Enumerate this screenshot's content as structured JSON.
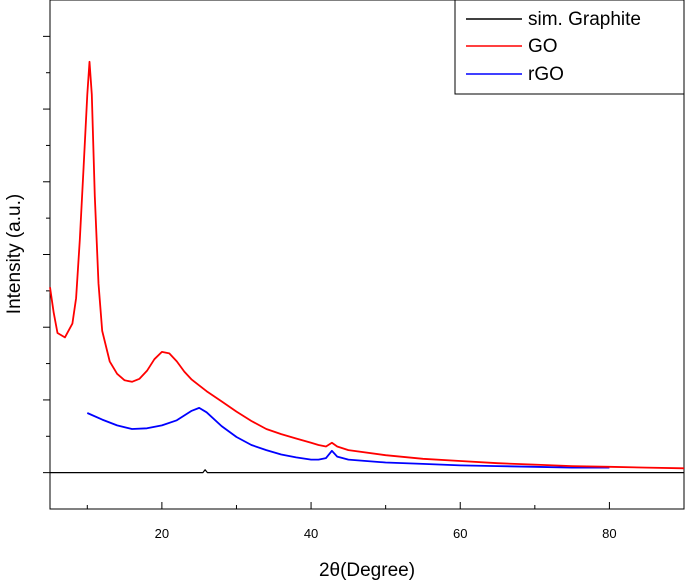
{
  "chart_data": {
    "type": "line",
    "title": "",
    "xlabel": "2θ(Degree)",
    "ylabel": "Intensity (a.u.)",
    "xlim": [
      5,
      90
    ],
    "ylim": [
      -5,
      65
    ],
    "x_ticks": [
      20,
      40,
      60,
      80
    ],
    "x_tick_labels": [
      "20",
      "40",
      "60",
      "80"
    ],
    "y_tick_labels_shown": false,
    "grid": false,
    "legend_position": "top-right",
    "series": [
      {
        "name": "sim. Graphite",
        "color": "#000000",
        "x": [
          5,
          25.5,
          25.8,
          26.1,
          90
        ],
        "y": [
          0,
          0,
          0.4,
          0,
          0
        ]
      },
      {
        "name": "GO",
        "color": "#ff0000",
        "x": [
          5,
          5.5,
          6,
          7,
          8,
          8.5,
          9,
          9.5,
          10,
          10.3,
          10.6,
          11,
          11.5,
          12,
          13,
          14,
          15,
          16,
          17,
          18,
          19,
          20,
          21,
          22,
          23,
          24,
          25,
          26,
          28,
          30,
          32,
          34,
          36,
          38,
          40,
          41,
          42,
          42.8,
          43.5,
          45,
          50,
          55,
          60,
          65,
          70,
          75,
          80,
          85,
          90
        ],
        "y": [
          25.5,
          22,
          19.2,
          18.6,
          20.5,
          24,
          32,
          42,
          52,
          56.5,
          52,
          38,
          26,
          19.5,
          15.3,
          13.6,
          12.7,
          12.5,
          12.9,
          14,
          15.6,
          16.6,
          16.4,
          15.3,
          13.9,
          12.8,
          12,
          11.2,
          9.8,
          8.4,
          7.1,
          6,
          5.3,
          4.7,
          4.1,
          3.8,
          3.6,
          4.1,
          3.6,
          3.1,
          2.4,
          1.9,
          1.6,
          1.3,
          1.1,
          0.9,
          0.8,
          0.7,
          0.6
        ]
      },
      {
        "name": "rGO",
        "color": "#0000ff",
        "x": [
          10,
          12,
          14,
          16,
          18,
          20,
          22,
          24,
          25,
          26,
          28,
          30,
          32,
          34,
          36,
          38,
          40,
          41,
          42,
          42.8,
          43.5,
          45,
          50,
          55,
          60,
          65,
          70,
          75,
          80
        ],
        "y": [
          8.2,
          7.3,
          6.5,
          6,
          6.1,
          6.5,
          7.2,
          8.5,
          8.9,
          8.3,
          6.4,
          4.9,
          3.8,
          3.1,
          2.5,
          2.1,
          1.8,
          1.8,
          2,
          3,
          2.2,
          1.8,
          1.4,
          1.2,
          1,
          0.9,
          0.8,
          0.7,
          0.7
        ]
      }
    ]
  }
}
